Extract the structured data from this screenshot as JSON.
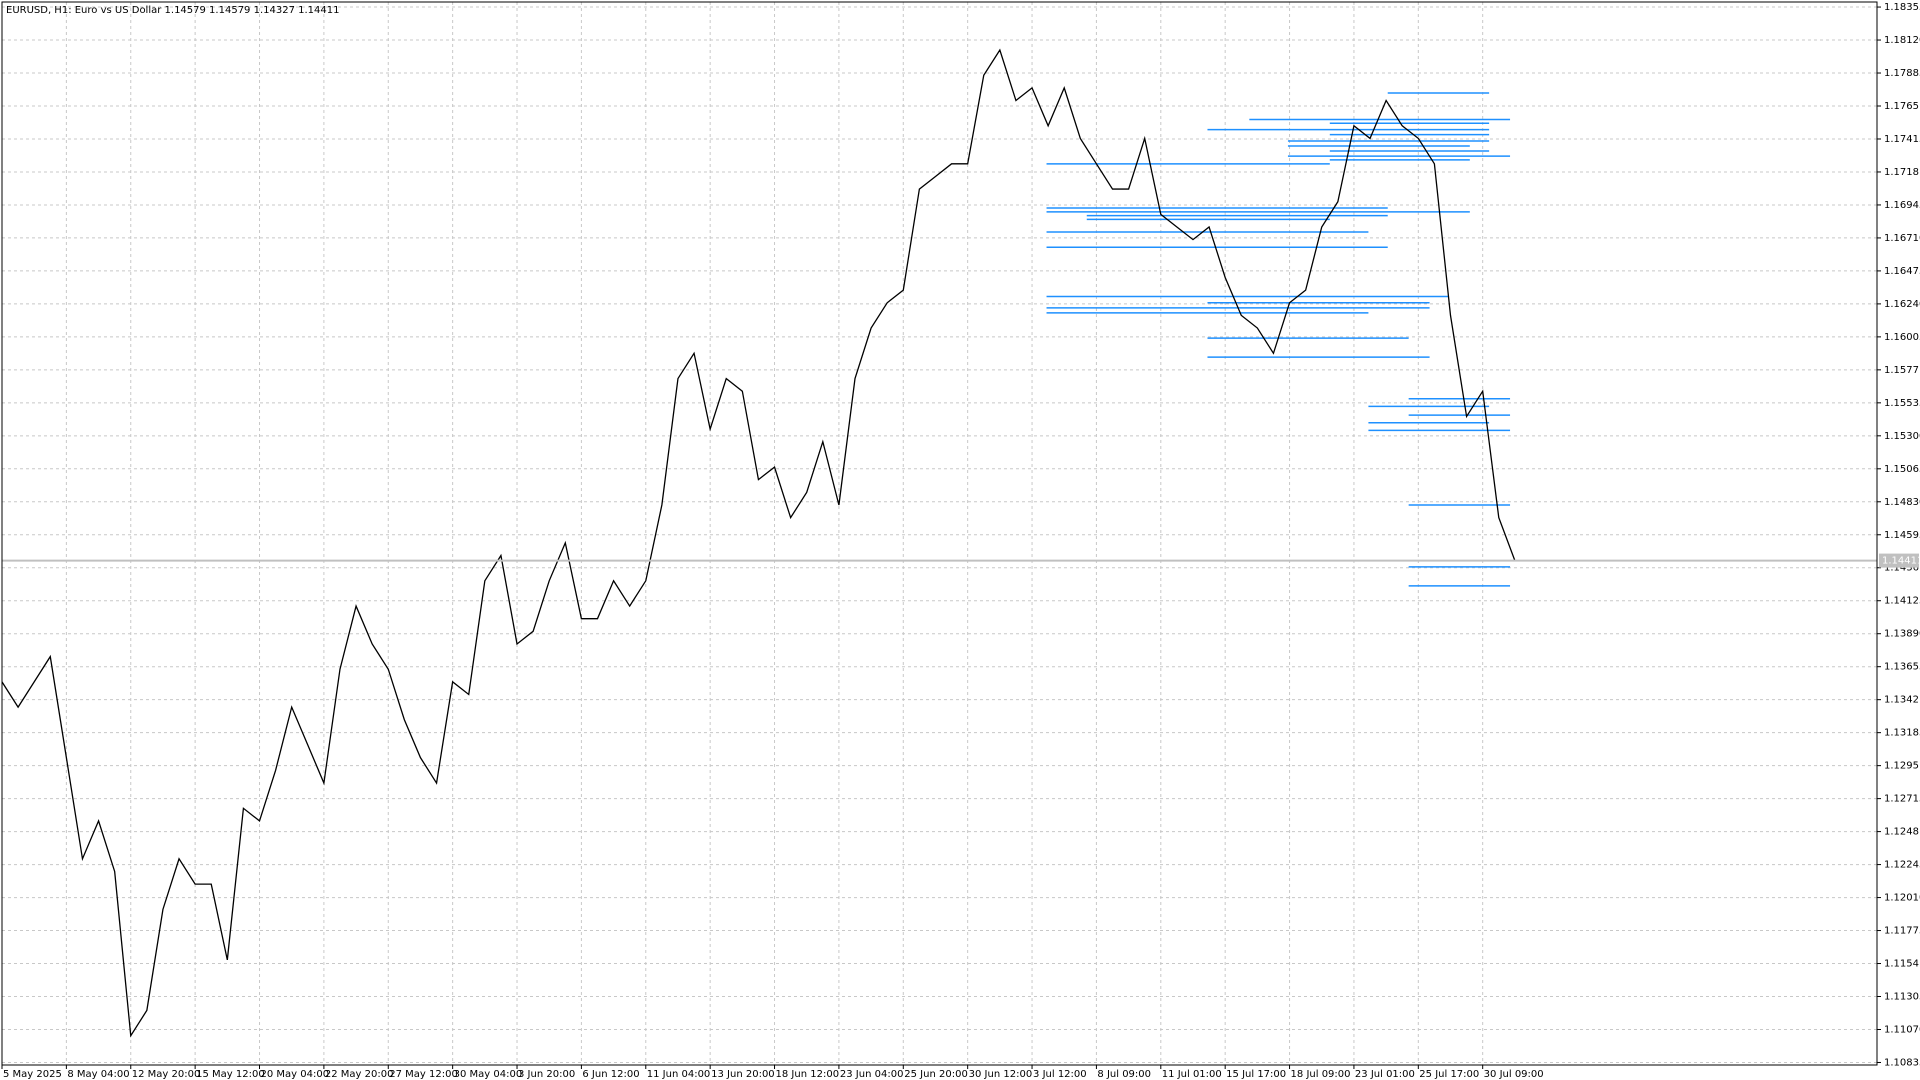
{
  "chart_data": {
    "type": "line",
    "title": "EURUSD, H1:  Euro vs US Dollar  1.14579 1.14579 1.14327 1.14411",
    "color": "#000000",
    "values": [
      1.13547,
      1.13367,
      1.13547,
      1.13727,
      1.13007,
      1.12286,
      1.12556,
      1.12196,
      1.11026,
      1.11206,
      1.11926,
      1.12286,
      1.12106,
      1.12106,
      1.11566,
      1.12646,
      1.12556,
      1.12917,
      1.13367,
      1.13097,
      1.12826,
      1.13637,
      1.14087,
      1.13817,
      1.13637,
      1.13277,
      1.13007,
      1.12826,
      1.13547,
      1.13457,
      1.14267,
      1.14447,
      1.13817,
      1.13907,
      1.14267,
      1.14537,
      1.13997,
      1.13997,
      1.14267,
      1.14087,
      1.14267,
      1.14807,
      1.15708,
      1.15888,
      1.15348,
      1.15708,
      1.15618,
      1.14988,
      1.15077,
      1.14717,
      1.14897,
      1.15258,
      1.14807,
      1.15708,
      1.16068,
      1.16248,
      1.16338,
      1.17058,
      1.17148,
      1.17238,
      1.17238,
      1.17869,
      1.18049,
      1.17689,
      1.17779,
      1.17509,
      1.17779,
      1.17419,
      1.17238,
      1.17058,
      1.17058,
      1.17419,
      1.16878,
      1.16788,
      1.16698,
      1.16788,
      1.16428,
      1.16158,
      1.16068,
      1.15888,
      1.16248,
      1.16338,
      1.16788,
      1.16968,
      1.17509,
      1.17419,
      1.17689,
      1.17509,
      1.17419,
      1.17238,
      1.16158,
      1.15438,
      1.15618,
      1.14717,
      1.14411
    ],
    "xlim": [
      0,
      116.5
    ],
    "xticks": [
      {
        "value": 0,
        "label": "5 May 2025"
      },
      {
        "value": 4,
        "label": "8 May 04:00"
      },
      {
        "value": 8,
        "label": "12 May 20:00"
      },
      {
        "value": 12,
        "label": "15 May 12:00"
      },
      {
        "value": 16,
        "label": "20 May 04:00"
      },
      {
        "value": 20,
        "label": "22 May 20:00"
      },
      {
        "value": 24,
        "label": "27 May 12:00"
      },
      {
        "value": 28,
        "label": "30 May 04:00"
      },
      {
        "value": 32,
        "label": "3 Jun 20:00"
      },
      {
        "value": 36,
        "label": "6 Jun 12:00"
      },
      {
        "value": 40,
        "label": "11 Jun 04:00"
      },
      {
        "value": 44,
        "label": "13 Jun 20:00"
      },
      {
        "value": 48,
        "label": "18 Jun 12:00"
      },
      {
        "value": 52,
        "label": "23 Jun 04:00"
      },
      {
        "value": 56,
        "label": "25 Jun 20:00"
      },
      {
        "value": 60,
        "label": "30 Jun 12:00"
      },
      {
        "value": 64,
        "label": "3 Jul 12:00"
      },
      {
        "value": 68,
        "label": "8 Jul 09:00"
      },
      {
        "value": 72,
        "label": "11 Jul 01:00"
      },
      {
        "value": 76,
        "label": "15 Jul 17:00"
      },
      {
        "value": 80,
        "label": "18 Jul 09:00"
      },
      {
        "value": 84,
        "label": "23 Jul 01:00"
      },
      {
        "value": 88,
        "label": "25 Jul 17:00"
      },
      {
        "value": 92,
        "label": "30 Jul 09:00"
      }
    ],
    "ylim": [
      1.10817,
      1.18391
    ],
    "yticks": [
      1.10835,
      {
        "value": 1.1107,
        "label": "1.11070"
      },
      1.11305,
      1.1154,
      1.11775,
      {
        "value": 1.1201,
        "label": "1.12010"
      },
      1.12245,
      1.1248,
      1.12715,
      1.1295,
      1.13185,
      1.1342,
      1.13655,
      {
        "value": 1.1389,
        "label": "1.13890"
      },
      1.14125,
      1.1436,
      1.14595,
      {
        "value": 1.1483,
        "label": "1.14830"
      },
      1.15065,
      {
        "value": 1.153,
        "label": "1.15300"
      },
      1.15535,
      1.1577,
      1.16005,
      {
        "value": 1.1624,
        "label": "1.16240"
      },
      1.16475,
      {
        "value": 1.1671,
        "label": "1.16710"
      },
      1.16945,
      1.1718,
      1.17415,
      1.1765,
      1.17885,
      {
        "value": 1.1812,
        "label": "1.18120"
      },
      1.18355
    ],
    "grid": true,
    "current_price": 1.14411,
    "level_color": "#1e90ff",
    "levels": [
      {
        "price": 1.17743,
        "from": 86.1,
        "to": 92.4
      },
      {
        "price": 1.17554,
        "from": 77.5,
        "to": 93.7
      },
      {
        "price": 1.17527,
        "from": 82.5,
        "to": 92.4
      },
      {
        "price": 1.17482,
        "from": 74.9,
        "to": 92.4
      },
      {
        "price": 1.17446,
        "from": 82.5,
        "to": 92.4
      },
      {
        "price": 1.17401,
        "from": 79.9,
        "to": 92.4
      },
      {
        "price": 1.17365,
        "from": 79.9,
        "to": 91.2
      },
      {
        "price": 1.17329,
        "from": 82.5,
        "to": 92.4
      },
      {
        "price": 1.17293,
        "from": 79.9,
        "to": 93.7
      },
      {
        "price": 1.17266,
        "from": 82.5,
        "to": 91.2
      },
      {
        "price": 1.17238,
        "from": 64.9,
        "to": 82.5
      },
      {
        "price": 1.16923,
        "from": 64.9,
        "to": 86.1
      },
      {
        "price": 1.16896,
        "from": 64.9,
        "to": 91.2
      },
      {
        "price": 1.16869,
        "from": 67.4,
        "to": 86.1
      },
      {
        "price": 1.16842,
        "from": 67.4,
        "to": 82.5
      },
      {
        "price": 1.16752,
        "from": 64.9,
        "to": 84.9
      },
      {
        "price": 1.16644,
        "from": 64.9,
        "to": 86.1
      },
      {
        "price": 1.16293,
        "from": 64.9,
        "to": 89.9
      },
      {
        "price": 1.16248,
        "from": 74.9,
        "to": 88.7
      },
      {
        "price": 1.16212,
        "from": 64.9,
        "to": 88.7
      },
      {
        "price": 1.16176,
        "from": 64.9,
        "to": 84.9
      },
      {
        "price": 1.15996,
        "from": 74.9,
        "to": 87.4
      },
      {
        "price": 1.15861,
        "from": 74.9,
        "to": 88.7
      },
      {
        "price": 1.15564,
        "from": 87.4,
        "to": 93.7
      },
      {
        "price": 1.1551,
        "from": 84.9,
        "to": 92.4
      },
      {
        "price": 1.15447,
        "from": 87.4,
        "to": 93.7
      },
      {
        "price": 1.15393,
        "from": 84.9,
        "to": 92.4
      },
      {
        "price": 1.15339,
        "from": 84.9,
        "to": 93.7
      },
      {
        "price": 1.14807,
        "from": 87.4,
        "to": 93.7
      },
      {
        "price": 1.14366,
        "from": 87.4,
        "to": 93.7
      },
      {
        "price": 1.14231,
        "from": 87.4,
        "to": 93.7
      }
    ]
  }
}
